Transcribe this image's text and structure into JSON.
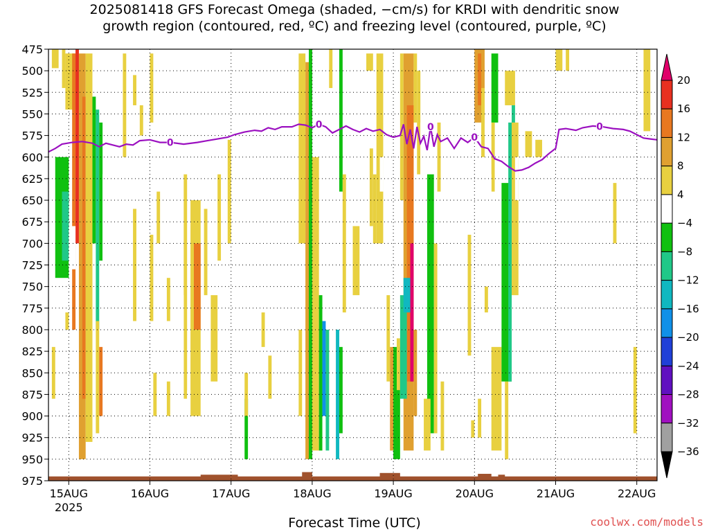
{
  "chart_data": {
    "type": "heatmap",
    "title": {
      "line1": "2025081418 GFS Forecast Omega (shaded, −cm/s) for KRDI with dendritic snow",
      "line2": "growth region (contoured, red, ºC) and freezing level (contoured, purple, ºC)"
    },
    "xlabel": "Forecast Time (UTC)",
    "ylabel": "",
    "y_axis": {
      "unit": "hPa",
      "range": [
        975,
        475
      ],
      "ticks": [
        475,
        500,
        525,
        550,
        575,
        600,
        625,
        650,
        675,
        700,
        725,
        750,
        775,
        800,
        825,
        850,
        875,
        900,
        925,
        950,
        975
      ]
    },
    "x_axis": {
      "ticks": [
        {
          "label": "15AUG",
          "sub": "2025",
          "hour": 6
        },
        {
          "label": "16AUG",
          "sub": "",
          "hour": 30
        },
        {
          "label": "17AUG",
          "sub": "",
          "hour": 54
        },
        {
          "label": "18AUG",
          "sub": "",
          "hour": 78
        },
        {
          "label": "19AUG",
          "sub": "",
          "hour": 102
        },
        {
          "label": "20AUG",
          "sub": "",
          "hour": 126
        },
        {
          "label": "21AUG",
          "sub": "",
          "hour": 150
        },
        {
          "label": "22AUG",
          "sub": "",
          "hour": 174
        }
      ],
      "range_hours": [
        0,
        180
      ]
    },
    "grid": true,
    "colorbar": {
      "levels": [
        20,
        16,
        12,
        8,
        4,
        -4,
        -8,
        -12,
        -16,
        -20,
        -24,
        -28,
        -32,
        -36
      ],
      "colors": [
        "#e0006a",
        "#e83020",
        "#e87820",
        "#e0a030",
        "#e8d040",
        "#ffffff",
        "#10c010",
        "#20c888",
        "#10b8c0",
        "#1090e8",
        "#2040d8",
        "#6010c0",
        "#a010c0",
        "#a0a0a0",
        "#000000"
      ]
    },
    "freezing_level": {
      "color": "#9b10c0",
      "label": "0",
      "label_hours": [
        36,
        80,
        113,
        126,
        163
      ],
      "points": [
        [
          0,
          594
        ],
        [
          2,
          590
        ],
        [
          4,
          585
        ],
        [
          7,
          583
        ],
        [
          10,
          582
        ],
        [
          13,
          584
        ],
        [
          15,
          588
        ],
        [
          17,
          584
        ],
        [
          19,
          586
        ],
        [
          21,
          588
        ],
        [
          23,
          585
        ],
        [
          25,
          586
        ],
        [
          27,
          581
        ],
        [
          30,
          580
        ],
        [
          33,
          583
        ],
        [
          36,
          583
        ],
        [
          40,
          585
        ],
        [
          44,
          583
        ],
        [
          47,
          581
        ],
        [
          50,
          579
        ],
        [
          53,
          577
        ],
        [
          55,
          574
        ],
        [
          58,
          571
        ],
        [
          61,
          569
        ],
        [
          63,
          570
        ],
        [
          65,
          566
        ],
        [
          67,
          568
        ],
        [
          69,
          565
        ],
        [
          72,
          565
        ],
        [
          74,
          562
        ],
        [
          76,
          563
        ],
        [
          78,
          566
        ],
        [
          80,
          562
        ],
        [
          82,
          565
        ],
        [
          84,
          572
        ],
        [
          86,
          568
        ],
        [
          88,
          564
        ],
        [
          90,
          568
        ],
        [
          92,
          571
        ],
        [
          94,
          567
        ],
        [
          96,
          570
        ],
        [
          98,
          568
        ],
        [
          100,
          574
        ],
        [
          102,
          577
        ],
        [
          104,
          575
        ],
        [
          105,
          562
        ],
        [
          106,
          585
        ],
        [
          107,
          568
        ],
        [
          108,
          590
        ],
        [
          109,
          565
        ],
        [
          110,
          584
        ],
        [
          111,
          576
        ],
        [
          112,
          592
        ],
        [
          113,
          565
        ],
        [
          114,
          588
        ],
        [
          115,
          574
        ],
        [
          116,
          582
        ],
        [
          118,
          578
        ],
        [
          120,
          590
        ],
        [
          122,
          578
        ],
        [
          124,
          583
        ],
        [
          126,
          577
        ],
        [
          128,
          588
        ],
        [
          130,
          590
        ],
        [
          132,
          602
        ],
        [
          134,
          605
        ],
        [
          136,
          611
        ],
        [
          138,
          616
        ],
        [
          140,
          615
        ],
        [
          142,
          612
        ],
        [
          144,
          607
        ],
        [
          146,
          603
        ],
        [
          148,
          596
        ],
        [
          150,
          590
        ],
        [
          151,
          568
        ],
        [
          153,
          567
        ],
        [
          156,
          569
        ],
        [
          158,
          566
        ],
        [
          161,
          564
        ],
        [
          164,
          565
        ],
        [
          167,
          567
        ],
        [
          170,
          568
        ],
        [
          172,
          570
        ],
        [
          174,
          574
        ],
        [
          176,
          578
        ],
        [
          178,
          579
        ],
        [
          180,
          580
        ]
      ]
    },
    "omega_cells": [
      [
        1,
        3,
        475,
        497,
        4
      ],
      [
        4,
        5,
        475,
        520,
        4
      ],
      [
        5,
        9,
        480,
        545,
        4
      ],
      [
        7,
        8,
        480,
        800,
        12
      ],
      [
        8,
        9,
        475,
        700,
        16
      ],
      [
        9,
        11,
        480,
        950,
        8
      ],
      [
        10,
        11,
        530,
        880,
        12
      ],
      [
        11,
        13,
        480,
        930,
        4
      ],
      [
        13,
        14,
        530,
        700,
        -8
      ],
      [
        14,
        15,
        545,
        800,
        -12
      ],
      [
        15,
        16,
        560,
        720,
        -8
      ],
      [
        16,
        17,
        620,
        720,
        -4
      ],
      [
        0,
        2,
        600,
        700,
        -4
      ],
      [
        2,
        6,
        600,
        740,
        -8
      ],
      [
        4,
        6,
        640,
        720,
        -12
      ],
      [
        6,
        8,
        680,
        730,
        -4
      ],
      [
        5,
        6,
        780,
        800,
        4
      ],
      [
        1,
        2,
        820,
        880,
        4
      ],
      [
        14,
        15,
        790,
        920,
        4
      ],
      [
        15,
        16,
        820,
        900,
        12
      ],
      [
        22,
        23,
        480,
        600,
        4
      ],
      [
        25,
        26,
        505,
        540,
        4
      ],
      [
        27,
        28,
        540,
        575,
        4
      ],
      [
        30,
        31,
        480,
        560,
        4
      ],
      [
        25,
        26,
        660,
        790,
        4
      ],
      [
        28,
        29,
        720,
        800,
        -4
      ],
      [
        30,
        31,
        690,
        790,
        4
      ],
      [
        35,
        36,
        740,
        790,
        4
      ],
      [
        32,
        33,
        640,
        700,
        4
      ],
      [
        42,
        45,
        650,
        900,
        4
      ],
      [
        43,
        45,
        700,
        800,
        12
      ],
      [
        40,
        41,
        620,
        880,
        4
      ],
      [
        46,
        47,
        660,
        760,
        4
      ],
      [
        48,
        50,
        760,
        860,
        4
      ],
      [
        50,
        51,
        620,
        720,
        4
      ],
      [
        53,
        54,
        580,
        700,
        4
      ],
      [
        39,
        40,
        760,
        900,
        -4
      ],
      [
        57,
        58,
        850,
        930,
        -4
      ],
      [
        58,
        59,
        880,
        950,
        -8
      ],
      [
        31,
        32,
        850,
        900,
        4
      ],
      [
        35,
        36,
        860,
        900,
        4
      ],
      [
        41,
        42,
        870,
        900,
        -4
      ],
      [
        63,
        64,
        780,
        820,
        4
      ],
      [
        65,
        66,
        830,
        880,
        4
      ],
      [
        67,
        68,
        830,
        880,
        -4
      ],
      [
        58,
        59,
        850,
        900,
        4
      ],
      [
        74,
        76,
        480,
        700,
        4
      ],
      [
        76,
        77,
        490,
        950,
        8
      ],
      [
        77,
        78,
        475,
        950,
        -8
      ],
      [
        78,
        80,
        600,
        940,
        4
      ],
      [
        80,
        81,
        760,
        940,
        -8
      ],
      [
        81,
        82,
        790,
        900,
        -20
      ],
      [
        82,
        83,
        800,
        940,
        -12
      ],
      [
        84,
        85,
        790,
        940,
        -4
      ],
      [
        85,
        86,
        800,
        950,
        -16
      ],
      [
        86,
        87,
        820,
        920,
        -8
      ],
      [
        74,
        75,
        800,
        900,
        4
      ],
      [
        72,
        73,
        820,
        900,
        -4
      ],
      [
        89,
        90,
        630,
        700,
        -4
      ],
      [
        90,
        91,
        700,
        760,
        4
      ],
      [
        83,
        84,
        475,
        520,
        4
      ],
      [
        86,
        87,
        475,
        640,
        -8
      ],
      [
        87,
        88,
        620,
        780,
        4
      ],
      [
        90,
        91,
        690,
        820,
        -4
      ],
      [
        90,
        92,
        680,
        760,
        4
      ],
      [
        93,
        95,
        760,
        860,
        -4
      ],
      [
        95,
        96,
        590,
        680,
        4
      ],
      [
        96,
        97,
        620,
        700,
        4
      ],
      [
        97,
        99,
        480,
        700,
        4
      ],
      [
        94,
        96,
        480,
        500,
        4
      ],
      [
        98,
        99,
        600,
        640,
        -4
      ],
      [
        100,
        101,
        760,
        860,
        4
      ],
      [
        101,
        102,
        820,
        940,
        8
      ],
      [
        102,
        104,
        820,
        950,
        -8
      ],
      [
        103,
        104,
        810,
        870,
        4
      ],
      [
        104,
        105,
        480,
        650,
        4
      ],
      [
        105,
        108,
        480,
        940,
        8
      ],
      [
        106,
        108,
        540,
        860,
        12
      ],
      [
        107,
        108,
        700,
        860,
        20
      ],
      [
        104,
        106,
        760,
        880,
        -12
      ],
      [
        105,
        107,
        740,
        780,
        -16
      ],
      [
        108,
        109,
        480,
        560,
        4
      ],
      [
        109,
        110,
        500,
        620,
        4
      ],
      [
        110,
        112,
        560,
        940,
        -4
      ],
      [
        112,
        114,
        620,
        920,
        -8
      ],
      [
        114,
        115,
        700,
        920,
        4
      ],
      [
        108,
        109,
        800,
        900,
        8
      ],
      [
        115,
        116,
        560,
        640,
        4
      ],
      [
        116,
        117,
        860,
        940,
        4
      ],
      [
        111,
        113,
        880,
        940,
        4
      ],
      [
        126,
        129,
        475,
        560,
        8
      ],
      [
        127,
        128,
        480,
        540,
        12
      ],
      [
        128,
        129,
        520,
        600,
        4
      ],
      [
        124,
        125,
        690,
        830,
        4
      ],
      [
        127,
        128,
        880,
        925,
        4
      ],
      [
        125,
        126,
        905,
        925,
        4
      ],
      [
        131,
        133,
        480,
        560,
        -8
      ],
      [
        133,
        134,
        500,
        525,
        -4
      ],
      [
        131,
        132,
        560,
        640,
        4
      ],
      [
        130,
        131,
        620,
        660,
        -4
      ],
      [
        132,
        133,
        600,
        640,
        -4
      ],
      [
        131,
        134,
        820,
        940,
        4
      ],
      [
        135,
        138,
        500,
        540,
        4
      ],
      [
        135,
        136,
        860,
        950,
        4
      ],
      [
        134,
        136,
        760,
        790,
        -4
      ],
      [
        129,
        130,
        750,
        780,
        4
      ],
      [
        134,
        137,
        630,
        860,
        -8
      ],
      [
        136,
        137,
        560,
        860,
        -12
      ],
      [
        137,
        138,
        540,
        620,
        -12
      ],
      [
        137,
        139,
        560,
        760,
        4
      ],
      [
        138,
        139,
        600,
        650,
        -4
      ],
      [
        141,
        143,
        570,
        600,
        4
      ],
      [
        144,
        146,
        580,
        600,
        4
      ],
      [
        150,
        152,
        475,
        500,
        4
      ],
      [
        153,
        154,
        475,
        500,
        4
      ],
      [
        173,
        174,
        820,
        920,
        4
      ],
      [
        167,
        168,
        630,
        700,
        4
      ],
      [
        176,
        178,
        475,
        570,
        4
      ]
    ],
    "ground_cells": [
      [
        0,
        180,
        970,
        975
      ],
      [
        45,
        56,
        968,
        975
      ],
      [
        75,
        78,
        965,
        975
      ],
      [
        98,
        104,
        966,
        975
      ],
      [
        127,
        131,
        967,
        975
      ],
      [
        133,
        135,
        968,
        975
      ]
    ]
  },
  "credit": "coolwx.com/models"
}
